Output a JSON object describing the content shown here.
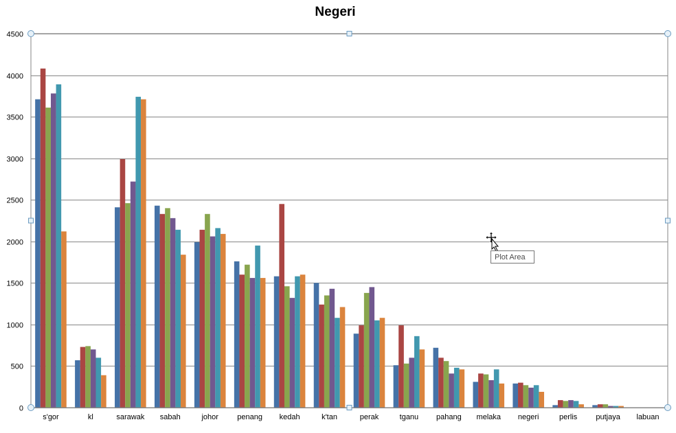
{
  "chart_data": {
    "type": "bar",
    "title": "Negeri",
    "xlabel": "",
    "ylabel": "",
    "ylim": [
      0,
      4500
    ],
    "yticks": [
      0,
      500,
      1000,
      1500,
      2000,
      2500,
      3000,
      3500,
      4000,
      4500
    ],
    "grid": true,
    "legend": "none",
    "categories": [
      "s'gor",
      "kl",
      "sarawak",
      "sabah",
      "johor",
      "penang",
      "kedah",
      "k'tan",
      "perak",
      "tganu",
      "pahang",
      "melaka",
      "negeri",
      "perlis",
      "putjaya",
      "labuan"
    ],
    "series": [
      {
        "color": "#4572a7",
        "values": [
          3710,
          570,
          2410,
          2430,
          1990,
          1760,
          1580,
          1500,
          890,
          510,
          720,
          310,
          290,
          30,
          30,
          0
        ]
      },
      {
        "color": "#aa4643",
        "values": [
          4080,
          730,
          2990,
          2330,
          2140,
          1600,
          2450,
          1240,
          990,
          990,
          600,
          410,
          300,
          90,
          40,
          0
        ]
      },
      {
        "color": "#89a54e",
        "values": [
          3610,
          740,
          2460,
          2400,
          2330,
          1720,
          1460,
          1350,
          1380,
          530,
          560,
          400,
          270,
          80,
          40,
          0
        ]
      },
      {
        "color": "#71588f",
        "values": [
          3780,
          700,
          2720,
          2280,
          2060,
          1560,
          1320,
          1430,
          1450,
          600,
          410,
          330,
          240,
          90,
          20,
          0
        ]
      },
      {
        "color": "#4198af",
        "values": [
          3890,
          600,
          3740,
          2140,
          2160,
          1950,
          1580,
          1080,
          1050,
          860,
          480,
          460,
          270,
          80,
          20,
          0
        ]
      },
      {
        "color": "#db843d",
        "values": [
          2120,
          390,
          3710,
          1840,
          2090,
          1560,
          1600,
          1210,
          1080,
          700,
          460,
          290,
          190,
          40,
          20,
          0
        ]
      }
    ]
  },
  "ui": {
    "tooltip_text": "Plot Area"
  }
}
